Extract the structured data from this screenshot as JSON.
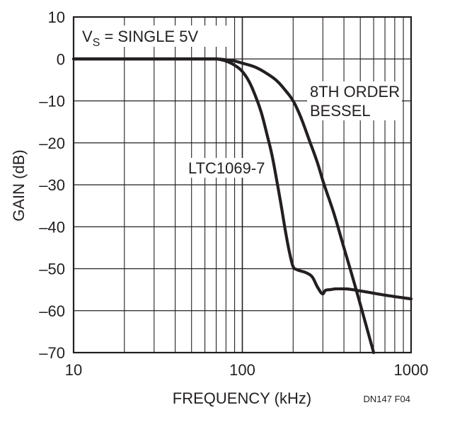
{
  "chart_data": {
    "type": "line",
    "xscale": "log",
    "xlim": [
      10,
      1000
    ],
    "ylim": [
      -70,
      10
    ],
    "xlabel": "FREQUENCY (kHz)",
    "ylabel": "GAIN (dB)",
    "grid": true,
    "x_ticks": [
      {
        "value": 10,
        "label": "10"
      },
      {
        "value": 100,
        "label": "100"
      },
      {
        "value": 1000,
        "label": "1000"
      }
    ],
    "y_ticks": [
      {
        "value": 10,
        "label": "10"
      },
      {
        "value": 0,
        "label": "0"
      },
      {
        "value": -10,
        "label": "–10"
      },
      {
        "value": -20,
        "label": "–20"
      },
      {
        "value": -30,
        "label": "–30"
      },
      {
        "value": -40,
        "label": "–40"
      },
      {
        "value": -50,
        "label": "–50"
      },
      {
        "value": -60,
        "label": "–60"
      },
      {
        "value": -70,
        "label": "–70"
      }
    ],
    "annotations": {
      "supply_prefix": "V",
      "supply_subscript": "S",
      "supply_suffix": " = SINGLE 5V",
      "bessel_line1": "8TH ORDER",
      "bessel_line2": "BESSEL",
      "ltc": "LTC1069-7"
    },
    "figure_id": "DN147 F04",
    "series": [
      {
        "name": "LTC1069-7",
        "x": [
          10,
          30,
          60,
          70,
          75,
          80,
          90,
          100,
          110,
          120,
          130,
          140,
          150,
          160,
          170,
          180,
          190,
          200,
          210,
          220,
          240,
          260,
          280,
          300,
          310,
          330,
          360,
          400,
          500,
          700,
          1000
        ],
        "y": [
          0,
          0,
          0,
          0,
          -0.2,
          -0.5,
          -1.5,
          -3,
          -5.5,
          -9,
          -13,
          -18,
          -23,
          -29,
          -35,
          -41,
          -46,
          -49.5,
          -50.2,
          -50.5,
          -51,
          -52,
          -54.5,
          -56,
          -55.2,
          -55,
          -54.8,
          -54.8,
          -55.3,
          -56.3,
          -57.2
        ]
      },
      {
        "name": "8TH ORDER BESSEL",
        "x": [
          10,
          40,
          70,
          80,
          90,
          100,
          120,
          140,
          160,
          180,
          200,
          220,
          250,
          280,
          300,
          350,
          400,
          450,
          500,
          550,
          600
        ],
        "y": [
          0,
          0,
          0,
          -0.2,
          -0.5,
          -1,
          -2,
          -3.5,
          -5.2,
          -7.5,
          -10,
          -13.5,
          -19.5,
          -25,
          -29,
          -37,
          -45,
          -52,
          -58.5,
          -64.5,
          -70
        ]
      }
    ],
    "colors": {
      "line": "#231f20",
      "grid": "#231f20",
      "background": "#ffffff"
    }
  }
}
